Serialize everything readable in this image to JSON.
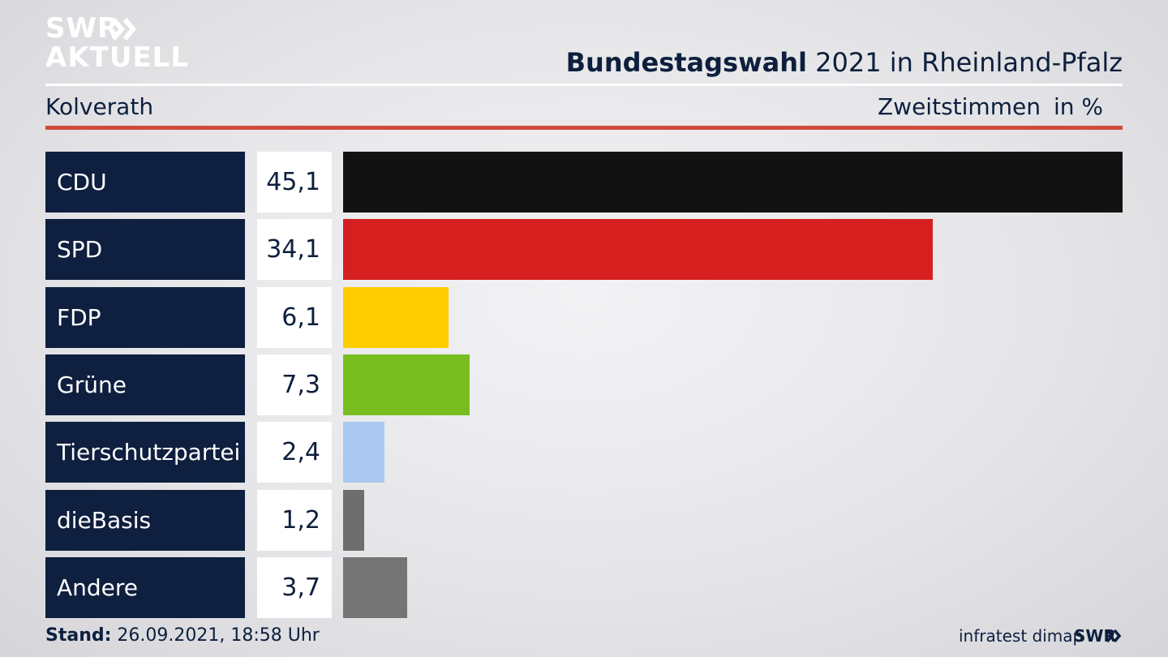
{
  "brand": {
    "logo_line1": "SWR",
    "logo_line2": "AKTUELL",
    "footer_logo": "SWR"
  },
  "header": {
    "title_bold": "Bundestagswahl",
    "title_rest": "2021 in Rheinland-Pfalz",
    "region": "Kolverath",
    "vote_type": "Zweitstimmen",
    "unit": "in %"
  },
  "footer": {
    "stand_label": "Stand:",
    "stand_value": "26.09.2021, 18:58 Uhr",
    "source": "infratest dimap"
  },
  "colors": {
    "navy": "#0f1f3f",
    "accent_red": "#d14a3a",
    "CDU": "#121212",
    "SPD": "#d62020",
    "FDP": "#ffcc00",
    "Grüne": "#78be20",
    "Tierschutzpartei": "#aac8f0",
    "dieBasis": "#6e6e6e",
    "Andere": "#747474"
  },
  "chart_data": {
    "type": "bar",
    "orientation": "horizontal",
    "categories": [
      "CDU",
      "SPD",
      "FDP",
      "Grüne",
      "Tierschutzpartei",
      "dieBasis",
      "Andere"
    ],
    "values": [
      45.1,
      34.1,
      6.1,
      7.3,
      2.4,
      1.2,
      3.7
    ],
    "value_labels": [
      "45,1",
      "34,1",
      "6,1",
      "7,3",
      "2,4",
      "1,2",
      "3,7"
    ],
    "bar_colors": [
      "#121212",
      "#d62020",
      "#ffcc00",
      "#78be20",
      "#aac8f0",
      "#6e6e6e",
      "#747474"
    ],
    "xlim": [
      0,
      45.1
    ]
  }
}
